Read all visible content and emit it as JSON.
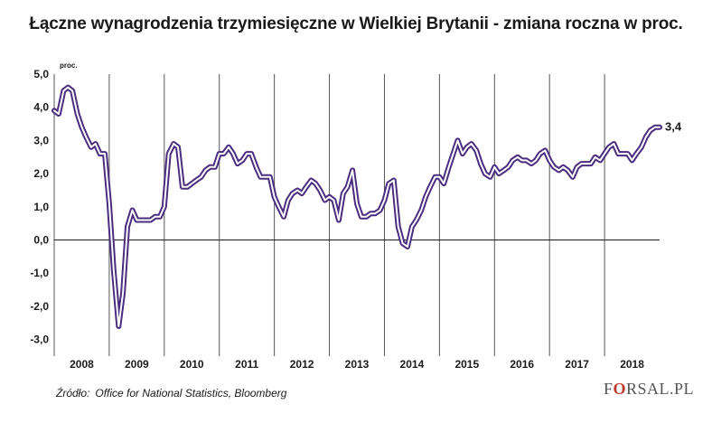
{
  "chart_data": {
    "type": "line",
    "title": "Łączne wynagrodzenia trzymiesięczne w Wielkiej Brytanii - zmiana roczna w proc.",
    "ylabel": "proc.",
    "ylim": [
      -3.5,
      5.0
    ],
    "yticks": [
      "5,0",
      "4,0",
      "3,0",
      "2,0",
      "1,0",
      "0,0",
      "-1,0",
      "-2,0",
      "-3,0"
    ],
    "ytick_values": [
      5,
      4,
      3,
      2,
      1,
      0,
      -1,
      -2,
      -3
    ],
    "xlim": [
      2008.0,
      2019.0
    ],
    "years": [
      "2008",
      "2009",
      "2010",
      "2011",
      "2012",
      "2013",
      "2014",
      "2015",
      "2016",
      "2017",
      "2018"
    ],
    "grid": "vertical-year-separators",
    "last_value_label": "3,4",
    "series": [
      {
        "points": [
          [
            2008.0,
            3.9
          ],
          [
            2008.08,
            3.8
          ],
          [
            2008.17,
            4.5
          ],
          [
            2008.25,
            4.6
          ],
          [
            2008.33,
            4.5
          ],
          [
            2008.42,
            3.8
          ],
          [
            2008.5,
            3.4
          ],
          [
            2008.58,
            3.1
          ],
          [
            2008.67,
            2.8
          ],
          [
            2008.75,
            2.9
          ],
          [
            2008.83,
            2.6
          ],
          [
            2008.92,
            2.6
          ],
          [
            2009.0,
            1.1
          ],
          [
            2009.08,
            -0.9
          ],
          [
            2009.17,
            -2.6
          ],
          [
            2009.25,
            -1.6
          ],
          [
            2009.33,
            0.4
          ],
          [
            2009.42,
            0.9
          ],
          [
            2009.5,
            0.6
          ],
          [
            2009.58,
            0.6
          ],
          [
            2009.67,
            0.6
          ],
          [
            2009.75,
            0.6
          ],
          [
            2009.83,
            0.7
          ],
          [
            2009.92,
            0.7
          ],
          [
            2010.0,
            1.0
          ],
          [
            2010.08,
            2.6
          ],
          [
            2010.17,
            2.9
          ],
          [
            2010.25,
            2.8
          ],
          [
            2010.33,
            1.6
          ],
          [
            2010.42,
            1.6
          ],
          [
            2010.5,
            1.7
          ],
          [
            2010.58,
            1.8
          ],
          [
            2010.67,
            1.9
          ],
          [
            2010.75,
            2.1
          ],
          [
            2010.83,
            2.2
          ],
          [
            2010.92,
            2.2
          ],
          [
            2011.0,
            2.6
          ],
          [
            2011.08,
            2.6
          ],
          [
            2011.17,
            2.8
          ],
          [
            2011.25,
            2.6
          ],
          [
            2011.33,
            2.3
          ],
          [
            2011.42,
            2.4
          ],
          [
            2011.5,
            2.6
          ],
          [
            2011.58,
            2.6
          ],
          [
            2011.67,
            2.2
          ],
          [
            2011.75,
            1.9
          ],
          [
            2011.83,
            1.9
          ],
          [
            2011.92,
            1.9
          ],
          [
            2012.0,
            1.3
          ],
          [
            2012.08,
            1.0
          ],
          [
            2012.17,
            0.7
          ],
          [
            2012.25,
            1.2
          ],
          [
            2012.33,
            1.4
          ],
          [
            2012.42,
            1.5
          ],
          [
            2012.5,
            1.4
          ],
          [
            2012.58,
            1.6
          ],
          [
            2012.67,
            1.8
          ],
          [
            2012.75,
            1.7
          ],
          [
            2012.83,
            1.5
          ],
          [
            2012.92,
            1.2
          ],
          [
            2013.0,
            1.3
          ],
          [
            2013.08,
            1.2
          ],
          [
            2013.17,
            0.6
          ],
          [
            2013.25,
            1.4
          ],
          [
            2013.33,
            1.6
          ],
          [
            2013.42,
            2.1
          ],
          [
            2013.5,
            1.1
          ],
          [
            2013.58,
            0.7
          ],
          [
            2013.67,
            0.7
          ],
          [
            2013.75,
            0.8
          ],
          [
            2013.83,
            0.8
          ],
          [
            2013.92,
            0.9
          ],
          [
            2014.0,
            1.2
          ],
          [
            2014.08,
            1.7
          ],
          [
            2014.17,
            1.8
          ],
          [
            2014.25,
            0.4
          ],
          [
            2014.33,
            -0.1
          ],
          [
            2014.42,
            -0.2
          ],
          [
            2014.5,
            0.4
          ],
          [
            2014.58,
            0.6
          ],
          [
            2014.67,
            0.9
          ],
          [
            2014.75,
            1.3
          ],
          [
            2014.83,
            1.6
          ],
          [
            2014.92,
            1.9
          ],
          [
            2015.0,
            1.9
          ],
          [
            2015.08,
            1.7
          ],
          [
            2015.17,
            2.2
          ],
          [
            2015.25,
            2.6
          ],
          [
            2015.33,
            3.0
          ],
          [
            2015.42,
            2.6
          ],
          [
            2015.5,
            2.8
          ],
          [
            2015.58,
            2.9
          ],
          [
            2015.67,
            2.7
          ],
          [
            2015.75,
            2.3
          ],
          [
            2015.83,
            2.0
          ],
          [
            2015.92,
            1.9
          ],
          [
            2016.0,
            2.2
          ],
          [
            2016.08,
            2.0
          ],
          [
            2016.17,
            2.1
          ],
          [
            2016.25,
            2.2
          ],
          [
            2016.33,
            2.4
          ],
          [
            2016.42,
            2.5
          ],
          [
            2016.5,
            2.4
          ],
          [
            2016.58,
            2.4
          ],
          [
            2016.67,
            2.3
          ],
          [
            2016.75,
            2.4
          ],
          [
            2016.83,
            2.6
          ],
          [
            2016.92,
            2.7
          ],
          [
            2017.0,
            2.4
          ],
          [
            2017.08,
            2.2
          ],
          [
            2017.17,
            2.1
          ],
          [
            2017.25,
            2.2
          ],
          [
            2017.33,
            2.1
          ],
          [
            2017.42,
            1.9
          ],
          [
            2017.5,
            2.2
          ],
          [
            2017.58,
            2.3
          ],
          [
            2017.67,
            2.3
          ],
          [
            2017.75,
            2.3
          ],
          [
            2017.83,
            2.5
          ],
          [
            2017.92,
            2.4
          ],
          [
            2018.0,
            2.6
          ],
          [
            2018.08,
            2.8
          ],
          [
            2018.17,
            2.9
          ],
          [
            2018.25,
            2.6
          ],
          [
            2018.33,
            2.6
          ],
          [
            2018.42,
            2.6
          ],
          [
            2018.5,
            2.4
          ],
          [
            2018.58,
            2.6
          ],
          [
            2018.67,
            2.8
          ],
          [
            2018.75,
            3.1
          ],
          [
            2018.83,
            3.3
          ],
          [
            2018.92,
            3.4
          ],
          [
            2019.0,
            3.4
          ]
        ]
      }
    ]
  },
  "source": {
    "label": "Źródło:",
    "text": "Office for National Statistics, Bloomberg"
  },
  "logo": {
    "part1": "F",
    "accent": "O",
    "part2": "RSAL.PL"
  },
  "colors": {
    "line_outer": "#4b2d7f",
    "line_inner": "#ffffff",
    "zero_line": "#1a1a1a",
    "grid": "#555555"
  }
}
